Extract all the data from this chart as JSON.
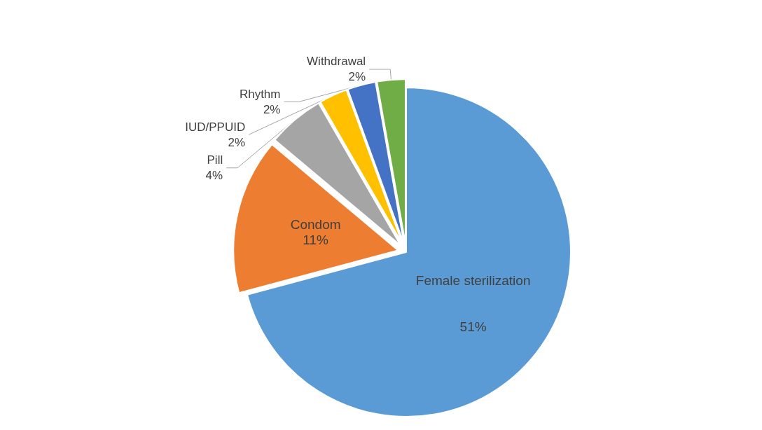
{
  "chart_data": {
    "type": "pie",
    "categories": [
      "Female sterilization",
      "Condom",
      "Pill",
      "IUD/PPUID",
      "Rhythm",
      "Withdrawal"
    ],
    "values": [
      51,
      11,
      4,
      2,
      2,
      2
    ],
    "value_labels": [
      "51%",
      "11%",
      "4%",
      "2%",
      "2%",
      "2%"
    ],
    "colors": [
      "#5b9bd5",
      "#ed7d31",
      "#a5a5a5",
      "#ffc000",
      "#4472c4",
      "#70ad47"
    ],
    "legend": false
  }
}
